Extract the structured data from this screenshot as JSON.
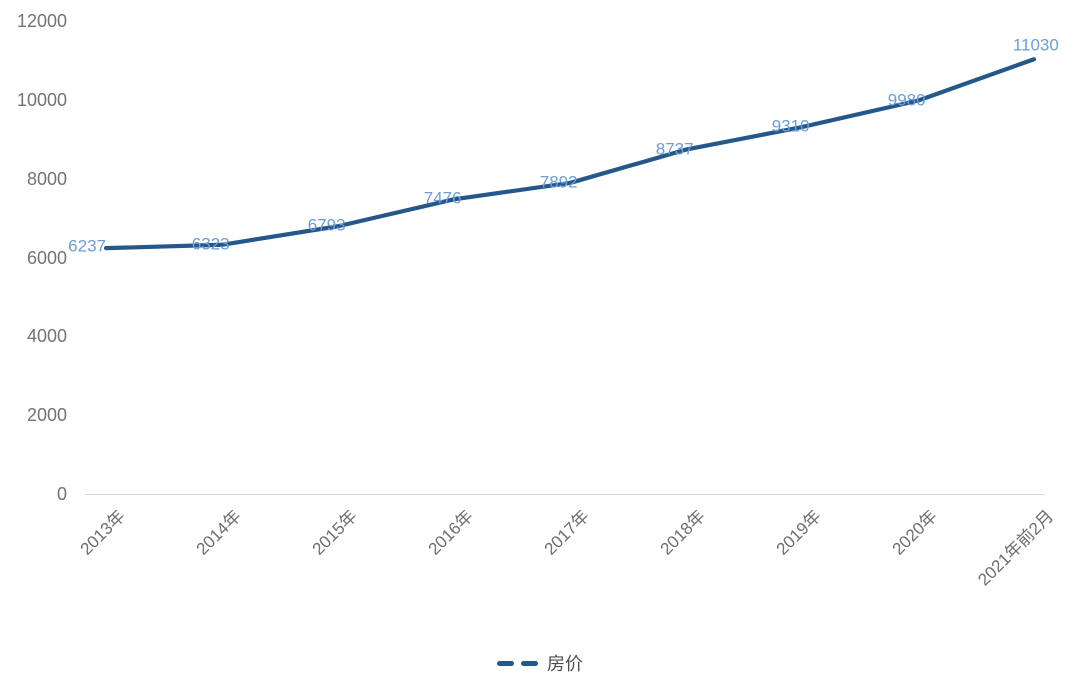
{
  "chart_data": {
    "type": "line",
    "title": "",
    "categories": [
      "2013年",
      "2014年",
      "2015年",
      "2016年",
      "2017年",
      "2018年",
      "2019年",
      "2020年",
      "2021年前2月"
    ],
    "series": [
      {
        "name": "房价",
        "values": [
          6237,
          6323,
          6793,
          7476,
          7892,
          8737,
          9310,
          9980,
          11030
        ]
      }
    ],
    "xlabel": "",
    "ylabel": "",
    "ylim": [
      0,
      12000
    ],
    "y_ticks": [
      0,
      2000,
      4000,
      6000,
      8000,
      10000,
      12000
    ],
    "grid": false,
    "x_label_rotation": 45,
    "data_labels_shown": true,
    "line_style": "solid",
    "legend_position": "bottom",
    "legend_marker": "dashed"
  },
  "colors": {
    "background": "#ffffff",
    "line": "#25588a",
    "data_label": "#6c9ed8",
    "axis_text": "#737373",
    "axis_line": "#d9d9d9",
    "legend_text": "#4d4d4d"
  },
  "legend": {
    "label": "房价"
  }
}
